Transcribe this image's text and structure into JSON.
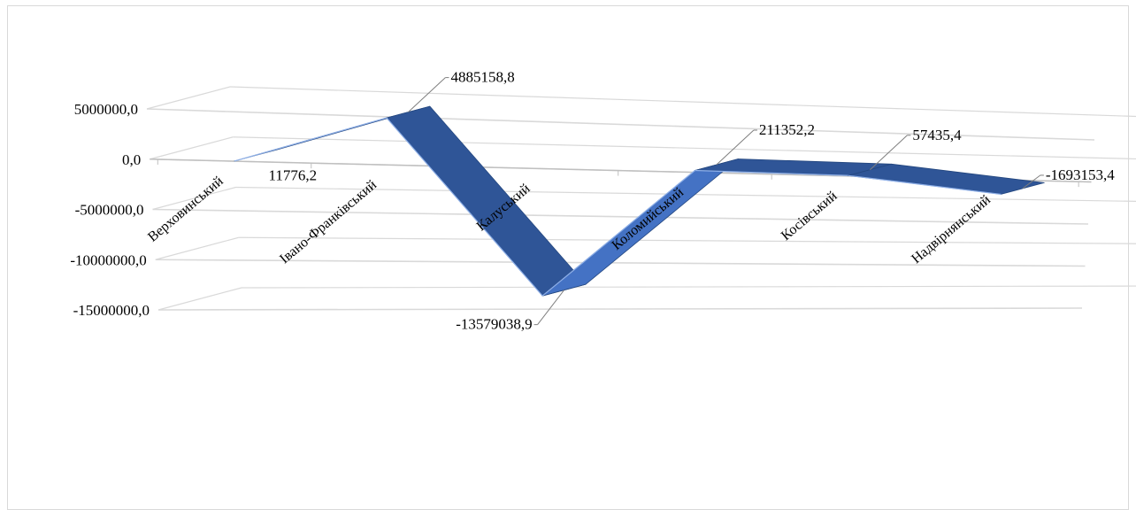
{
  "chart_data": {
    "type": "line",
    "style": "3d-ribbon",
    "title": "",
    "xlabel": "",
    "ylabel": "",
    "categories": [
      "Верховинський",
      "Івано-Франківський",
      "Калуський",
      "Коломийський",
      "Косівський",
      "Надвірнянський"
    ],
    "series": [
      {
        "values": [
          11776.2,
          4885158.8,
          -13579038.9,
          211352.2,
          57435.4,
          -1693153.4
        ],
        "labels": [
          "11776,2",
          "4885158,8",
          "-13579038,9",
          "211352,2",
          "57435,4",
          "-1693153,4"
        ]
      }
    ],
    "yticks": [
      5000000,
      0,
      -5000000,
      -10000000,
      -15000000
    ],
    "ytick_labels": [
      "5000000,0",
      "0,0",
      "-5000000,0",
      "-10000000,0",
      "-15000000,0"
    ],
    "ylim": [
      -15000000,
      5000000
    ],
    "grid": true,
    "legend": "none",
    "colors": {
      "ribbon_top": "#4472c4",
      "ribbon_side": "#2f5597",
      "gridline": "#d9d9d9",
      "axis": "#bfbfbf",
      "leader": "#7f7f7f"
    }
  }
}
